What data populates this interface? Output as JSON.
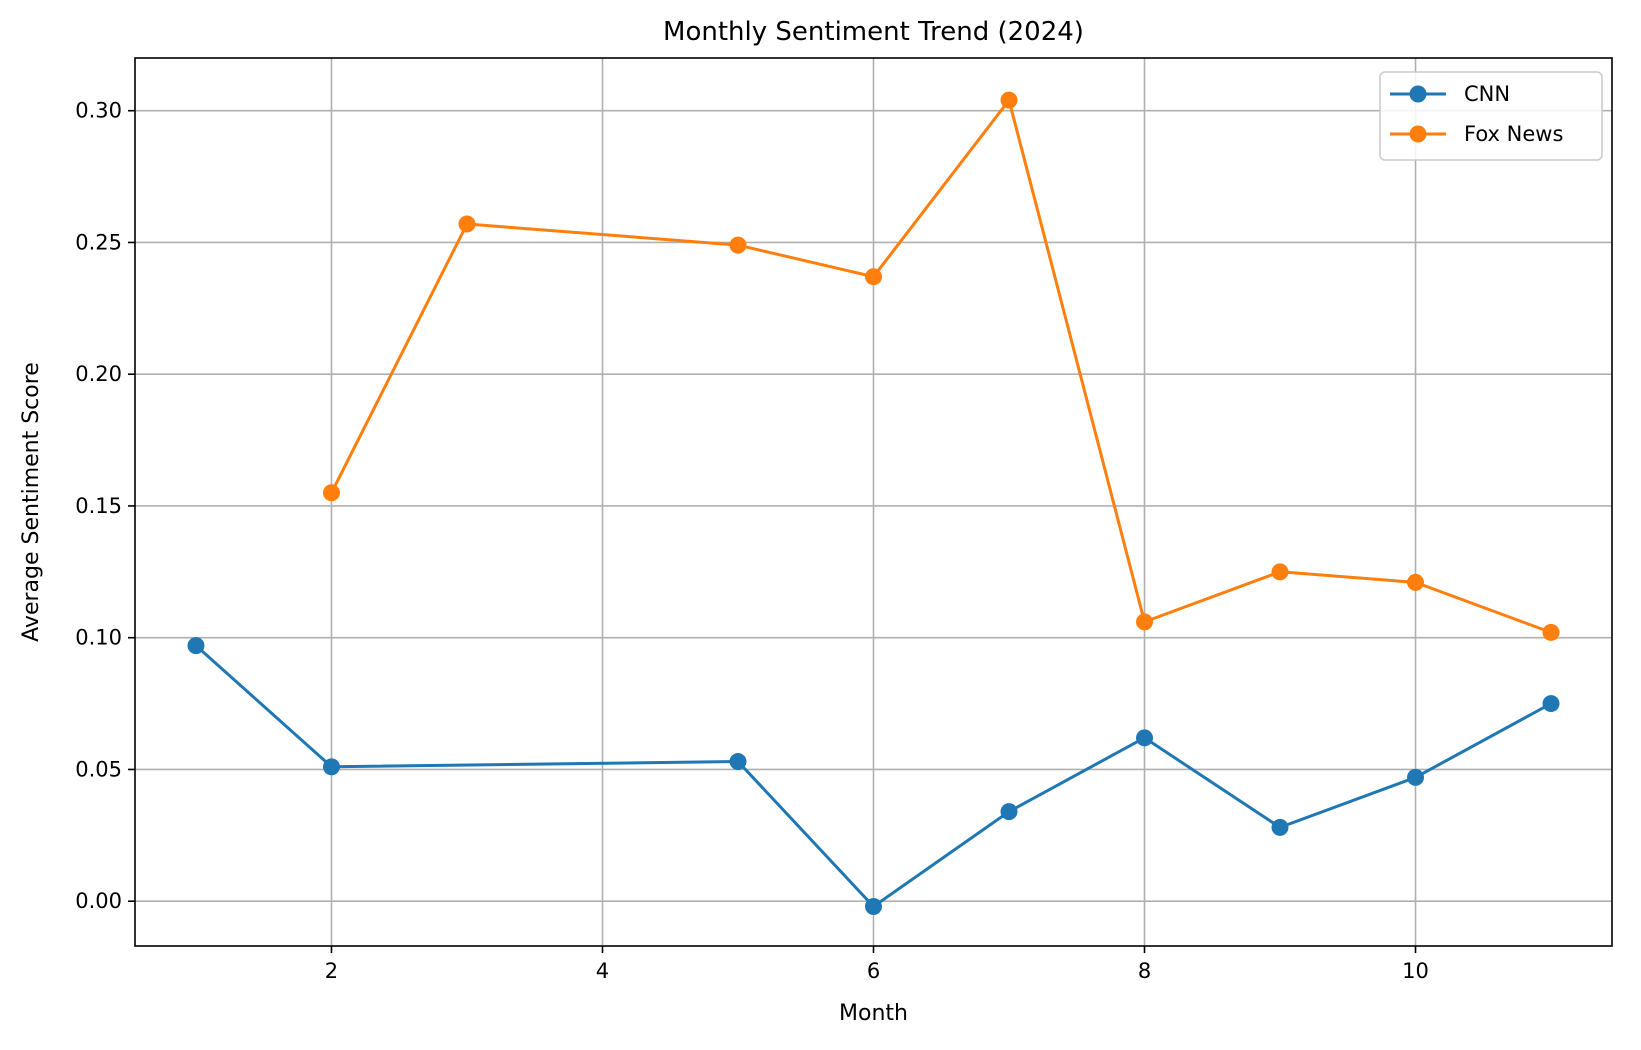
{
  "chart_data": {
    "type": "line",
    "title": "Monthly Sentiment Trend (2024)",
    "xlabel": "Month",
    "ylabel": "Average Sentiment Score",
    "xlim": [
      0.55,
      11.45
    ],
    "ylim": [
      -0.017,
      0.32
    ],
    "xticks": [
      2,
      4,
      6,
      8,
      10
    ],
    "xtick_labels": [
      "2",
      "4",
      "6",
      "8",
      "10"
    ],
    "yticks": [
      0.0,
      0.05,
      0.1,
      0.15,
      0.2,
      0.25,
      0.3
    ],
    "ytick_labels": [
      "0.00",
      "0.05",
      "0.10",
      "0.15",
      "0.20",
      "0.25",
      "0.30"
    ],
    "grid": true,
    "legend_position": "top-right",
    "series": [
      {
        "name": "CNN",
        "color": "#1f77b4",
        "marker": "circle",
        "points": [
          {
            "x": 1,
            "y": 0.097
          },
          {
            "x": 2,
            "y": 0.051
          },
          {
            "x": 5,
            "y": 0.053
          },
          {
            "x": 6,
            "y": -0.002
          },
          {
            "x": 7,
            "y": 0.034
          },
          {
            "x": 8,
            "y": 0.062
          },
          {
            "x": 9,
            "y": 0.028
          },
          {
            "x": 10,
            "y": 0.047
          },
          {
            "x": 11,
            "y": 0.075
          }
        ]
      },
      {
        "name": "Fox News",
        "color": "#ff7f0e",
        "marker": "circle",
        "points": [
          {
            "x": 2,
            "y": 0.155
          },
          {
            "x": 3,
            "y": 0.257
          },
          {
            "x": 5,
            "y": 0.249
          },
          {
            "x": 6,
            "y": 0.237
          },
          {
            "x": 7,
            "y": 0.304
          },
          {
            "x": 8,
            "y": 0.106
          },
          {
            "x": 9,
            "y": 0.125
          },
          {
            "x": 10,
            "y": 0.121
          },
          {
            "x": 11,
            "y": 0.102
          }
        ]
      }
    ]
  }
}
